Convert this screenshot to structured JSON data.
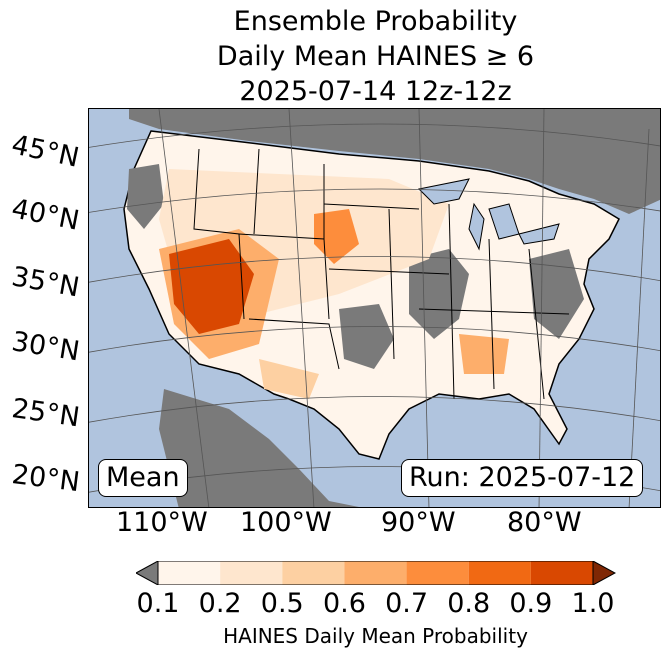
{
  "title": {
    "line1": "Ensemble Probability",
    "line2": "Daily Mean HAINES ≥ 6",
    "line3": "2025-07-14 12z-12z"
  },
  "map": {
    "ocean_color": "#b0c4de",
    "land_color": "#ffffff",
    "no_data_color": "#7a7a7a",
    "latitude_labels": [
      "45°N",
      "40°N",
      "35°N",
      "30°N",
      "25°N",
      "20°N"
    ],
    "longitude_labels": [
      "110°W",
      "100°W",
      "90°W",
      "80°W"
    ]
  },
  "annotations": {
    "left": "Mean",
    "right": "Run: 2025-07-12"
  },
  "colorbar": {
    "label": "HAINES Daily Mean Probability",
    "ticks": [
      "0.1",
      "0.2",
      "0.5",
      "0.6",
      "0.7",
      "0.8",
      "0.9",
      "1.0"
    ],
    "under_color": "#7a7a7a",
    "over_color": "#7f2704",
    "colors": [
      "#fff5eb",
      "#fee6ce",
      "#fdd0a2",
      "#fdae6b",
      "#fd8d3c",
      "#f16913",
      "#d94801"
    ]
  }
}
